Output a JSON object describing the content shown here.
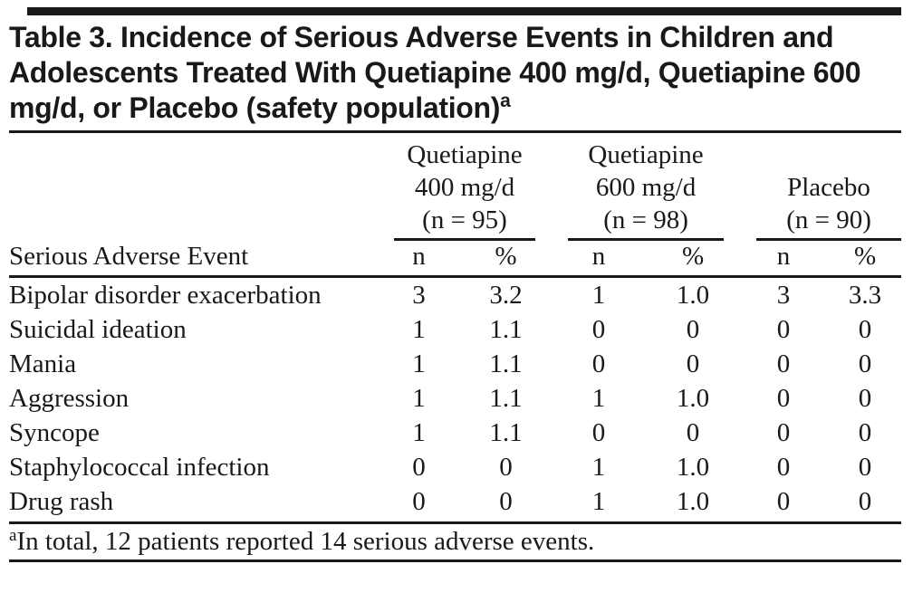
{
  "table": {
    "title": "Table 3. Incidence of Serious Adverse Events in Children and Adolescents Treated With Quetiapine 400 mg/d, Quetiapine 600 mg/d, or Placebo (safety population)",
    "title_superscript": "a",
    "row_header_label": "Serious Adverse Event",
    "groups": [
      {
        "lines": [
          "Quetiapine",
          "400 mg/d",
          "(n = 95)"
        ]
      },
      {
        "lines": [
          "Quetiapine",
          "600 mg/d",
          "(n = 98)"
        ]
      },
      {
        "lines": [
          "Placebo",
          "(n = 90)"
        ]
      }
    ],
    "subheaders": [
      "n",
      "%"
    ],
    "rows": [
      {
        "event": "Bipolar disorder exacerbation",
        "values": [
          "3",
          "3.2",
          "1",
          "1.0",
          "3",
          "3.3"
        ]
      },
      {
        "event": "Suicidal ideation",
        "values": [
          "1",
          "1.1",
          "0",
          "0",
          "0",
          "0"
        ]
      },
      {
        "event": "Mania",
        "values": [
          "1",
          "1.1",
          "0",
          "0",
          "0",
          "0"
        ]
      },
      {
        "event": "Aggression",
        "values": [
          "1",
          "1.1",
          "1",
          "1.0",
          "0",
          "0"
        ]
      },
      {
        "event": "Syncope",
        "values": [
          "1",
          "1.1",
          "0",
          "0",
          "0",
          "0"
        ]
      },
      {
        "event": "Staphylococcal infection",
        "values": [
          "0",
          "0",
          "1",
          "1.0",
          "0",
          "0"
        ]
      },
      {
        "event": "Drug rash",
        "values": [
          "0",
          "0",
          "1",
          "1.0",
          "0",
          "0"
        ]
      }
    ],
    "footnote": {
      "marker": "a",
      "text": "In total, 12 patients reported 14 serious adverse events."
    }
  },
  "colors": {
    "ink": "#191919",
    "background": "#ffffff"
  }
}
